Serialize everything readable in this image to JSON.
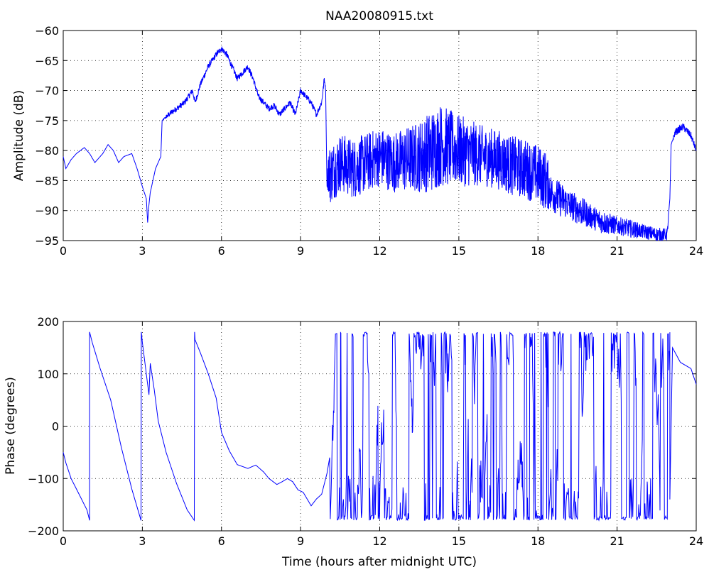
{
  "figure": {
    "title": "NAA20080915.txt"
  },
  "chart_data": [
    {
      "type": "line",
      "title": "NAA20080915.txt",
      "xlabel": "",
      "ylabel": "Amplitude (dB)",
      "xlim": [
        0,
        24
      ],
      "ylim": [
        -95,
        -60
      ],
      "xticks": [
        0,
        3,
        6,
        9,
        12,
        15,
        18,
        21,
        24
      ],
      "yticks": [
        -95,
        -90,
        -85,
        -80,
        -75,
        -70,
        -65,
        -60
      ],
      "xtick_labels": [
        "0",
        "3",
        "6",
        "9",
        "12",
        "15",
        "18",
        "21",
        "24"
      ],
      "ytick_labels": [
        "−95",
        "−90",
        "−85",
        "−80",
        "−75",
        "−70",
        "−65",
        "−60"
      ],
      "grid": true,
      "color": "#0000ff",
      "x": [
        0,
        0.1,
        0.3,
        0.5,
        0.8,
        1.0,
        1.2,
        1.5,
        1.7,
        1.9,
        2.1,
        2.3,
        2.6,
        2.8,
        3.0,
        3.15,
        3.2,
        3.25,
        3.3,
        3.5,
        3.7,
        3.75,
        4.0,
        4.3,
        4.6,
        4.9,
        5.0,
        5.2,
        5.5,
        5.8,
        6.0,
        6.2,
        6.4,
        6.6,
        6.8,
        7.0,
        7.2,
        7.4,
        7.6,
        7.8,
        8.0,
        8.2,
        8.4,
        8.6,
        8.8,
        9.0,
        9.2,
        9.4,
        9.6,
        9.8,
        9.9,
        9.95,
        10.0,
        10.05,
        10.1,
        10.5,
        11.0,
        11.5,
        12.0,
        12.5,
        13.0,
        13.5,
        14.0,
        14.3,
        14.6,
        15.0,
        15.5,
        16.0,
        16.5,
        17.0,
        17.5,
        18.0,
        18.3,
        18.5,
        18.8,
        19.2,
        19.6,
        20.0,
        20.5,
        21.0,
        21.5,
        22.0,
        22.5,
        22.9,
        23.0,
        23.05,
        23.2,
        23.5,
        23.8,
        24.0
      ],
      "y": [
        -81,
        -83,
        -81.5,
        -80.5,
        -79.5,
        -80.5,
        -82,
        -80.5,
        -79,
        -80,
        -82,
        -81,
        -80.5,
        -83,
        -86,
        -88,
        -92,
        -89,
        -87,
        -83,
        -81,
        -75,
        -74,
        -73,
        -72,
        -70,
        -72,
        -69,
        -66,
        -64,
        -63,
        -64,
        -66,
        -68,
        -67,
        -66,
        -68,
        -71,
        -72,
        -73,
        -72.5,
        -74,
        -73,
        -72,
        -74,
        -70,
        -71,
        -72,
        -74,
        -72,
        -68,
        -70,
        -86,
        -83,
        -84,
        -82,
        -83,
        -82,
        -81,
        -82,
        -81.5,
        -81,
        -80,
        -79,
        -79.5,
        -80,
        -80.5,
        -81,
        -81.5,
        -82.5,
        -83,
        -84,
        -85,
        -87,
        -88,
        -89,
        -90,
        -91,
        -92,
        -92.5,
        -93,
        -93.5,
        -94,
        -94,
        -88,
        -79,
        -77,
        -76,
        -77.5,
        -80
      ],
      "noise": [
        0,
        0,
        0,
        0,
        0,
        0,
        0,
        0,
        0,
        0,
        0,
        0,
        0,
        0,
        0,
        0,
        0,
        0,
        0,
        0,
        0,
        0,
        0.5,
        0.5,
        0.5,
        0.5,
        0.5,
        0.5,
        0.5,
        0.5,
        0.5,
        0.5,
        0.5,
        0.5,
        0.5,
        0.5,
        0.5,
        0.5,
        0.5,
        0.5,
        0.5,
        0.5,
        0.5,
        0.5,
        0.5,
        0.5,
        0.5,
        0.5,
        0.5,
        0.5,
        0.5,
        0,
        0,
        4,
        5,
        5,
        5,
        5,
        5,
        5,
        5.5,
        6,
        7,
        7,
        6.5,
        6,
        5.5,
        5,
        5,
        5,
        5,
        5,
        5,
        3,
        3,
        2.5,
        2.5,
        2,
        2,
        1.5,
        1.5,
        1.2,
        1.2,
        1,
        0,
        0,
        0.6,
        0.6,
        0.6,
        0.5
      ]
    },
    {
      "type": "line",
      "title": "",
      "xlabel": "Time (hours after midnight UTC)",
      "ylabel": "Phase (degrees)",
      "xlim": [
        0,
        24
      ],
      "ylim": [
        -200,
        200
      ],
      "xticks": [
        0,
        3,
        6,
        9,
        12,
        15,
        18,
        21,
        24
      ],
      "yticks": [
        -200,
        -100,
        0,
        100,
        200
      ],
      "xtick_labels": [
        "0",
        "3",
        "6",
        "9",
        "12",
        "15",
        "18",
        "21",
        "24"
      ],
      "ytick_labels": [
        "−200",
        "−100",
        "0",
        "100",
        "200"
      ],
      "grid": true,
      "color": "#0000ff",
      "x": [
        0,
        0.1,
        0.3,
        0.6,
        0.9,
        1.0,
        1.0,
        1.1,
        1.4,
        1.8,
        2.2,
        2.6,
        2.95,
        2.96,
        3.0,
        3.2,
        3.25,
        3.3,
        3.45,
        3.6,
        3.9,
        4.3,
        4.7,
        4.97,
        4.98,
        5.0,
        5.2,
        5.5,
        5.8,
        6.0,
        6.3,
        6.6,
        7.0,
        7.3,
        7.6,
        7.8,
        8.1,
        8.3,
        8.5,
        8.7,
        8.9,
        9.1,
        9.4,
        9.6,
        9.8,
        10.0,
        10.1
      ],
      "y": [
        -50,
        -70,
        -100,
        -130,
        -160,
        -180,
        180,
        160,
        110,
        50,
        -40,
        -120,
        -180,
        180,
        160,
        80,
        60,
        120,
        70,
        10,
        -50,
        -110,
        -160,
        -180,
        180,
        165,
        140,
        100,
        50,
        -10,
        -50,
        -70,
        -80,
        -75,
        -90,
        -100,
        -115,
        -110,
        -100,
        -110,
        -120,
        -130,
        -150,
        -140,
        -130,
        -90,
        -60
      ],
      "noise_region": {
        "x_start": 10.1,
        "x_end": 23.0,
        "range": [
          -180,
          180
        ],
        "note_end_x": [
          23.0,
          23.1,
          23.4,
          23.8,
          24.0
        ],
        "note_end_y": [
          -140,
          150,
          120,
          110,
          80
        ]
      }
    }
  ]
}
